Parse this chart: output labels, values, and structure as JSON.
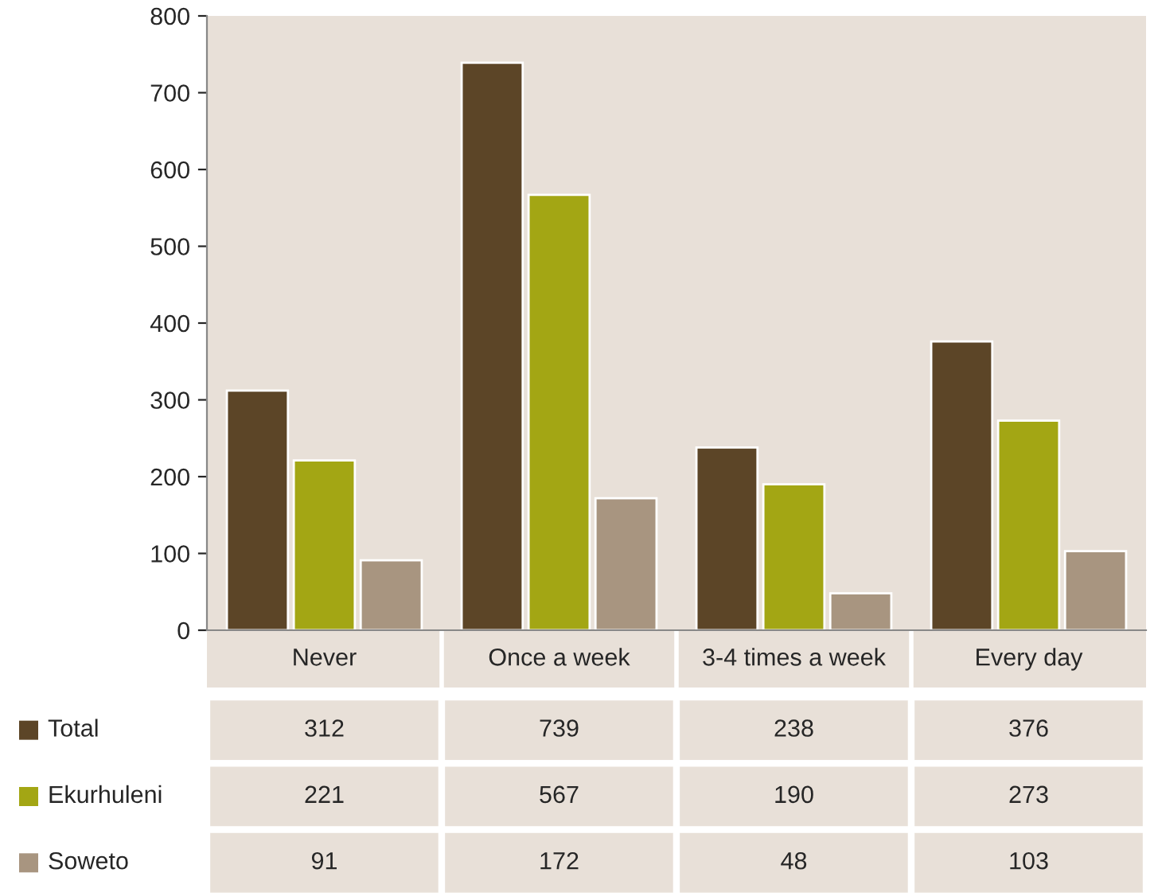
{
  "chart_data": {
    "type": "bar",
    "categories": [
      "Never",
      "Once a week",
      "3-4 times a week",
      "Every day"
    ],
    "series": [
      {
        "name": "Total",
        "color": "#5c4527",
        "values": [
          312,
          739,
          238,
          376
        ]
      },
      {
        "name": "Ekurhuleni",
        "color": "#a3a614",
        "values": [
          221,
          567,
          190,
          273
        ]
      },
      {
        "name": "Soweto",
        "color": "#a89580",
        "values": [
          91,
          172,
          48,
          103
        ]
      }
    ],
    "ylim": [
      0,
      800
    ],
    "yticks": [
      0,
      100,
      200,
      300,
      400,
      500,
      600,
      700,
      800
    ],
    "grid": false,
    "legend": "bottom left",
    "data_labels": true
  }
}
